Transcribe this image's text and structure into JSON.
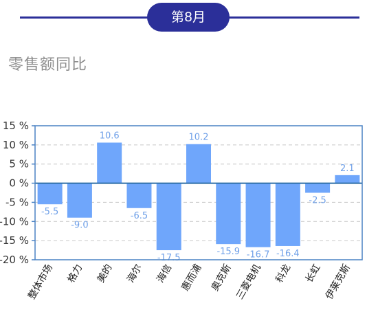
{
  "header": {
    "month": "第8月"
  },
  "section": {
    "title": "零售额同比"
  },
  "colors": {
    "bar": "#6fa6fb",
    "axis": "#4a82c4",
    "zero_line": "#2f6fa8",
    "grid": "#c6c6c6",
    "label": "#6fa0e8",
    "accent": "#2b2f99"
  },
  "chart_data": {
    "type": "bar",
    "title": "零售额同比",
    "xlabel": "",
    "ylabel": "",
    "categories": [
      "整体市场",
      "格力",
      "美的",
      "海尔",
      "海信",
      "惠而浦",
      "奥克斯",
      "三菱电机",
      "科龙",
      "长虹",
      "伊莱克斯"
    ],
    "values": [
      -5.5,
      -9.0,
      10.6,
      -6.5,
      -17.5,
      10.2,
      -15.9,
      -16.7,
      -16.4,
      -2.5,
      2.1
    ],
    "value_labels": [
      "-5.5",
      "-9.0",
      "10.6",
      "-6.5",
      "-17.5",
      "10.2",
      "-15.9",
      "-16.7",
      "-16.4",
      "-2.5",
      "2.1"
    ],
    "ylim": [
      -20,
      15
    ],
    "yticks": [
      15,
      10,
      5,
      0,
      -5,
      -10,
      -15,
      -20
    ],
    "ytick_labels": [
      "15 %",
      "10 %",
      "5 %",
      "0 %",
      "-5 %",
      "-10 %",
      "-15 %",
      "-20 %"
    ],
    "grid": "horizontal dashed"
  }
}
